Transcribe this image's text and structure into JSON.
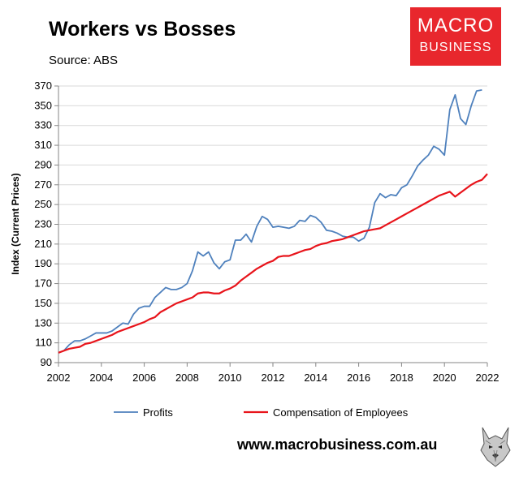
{
  "header": {
    "title": "Workers vs Bosses",
    "source": "Source: ABS"
  },
  "logo": {
    "line1": "MACRO",
    "line2": "BUSINESS",
    "color": "#e8272d"
  },
  "footer": {
    "url": "www.macrobusiness.com.au"
  },
  "chart_data": {
    "type": "line",
    "title": "Workers vs Bosses",
    "xlabel": "",
    "ylabel": "Index (Current Prices)",
    "xlim": [
      2002,
      2022
    ],
    "ylim": [
      90,
      370
    ],
    "xticks": [
      2002,
      2004,
      2006,
      2008,
      2010,
      2012,
      2014,
      2016,
      2018,
      2020,
      2022
    ],
    "yticks": [
      90,
      110,
      130,
      150,
      170,
      190,
      210,
      230,
      250,
      270,
      290,
      310,
      330,
      350,
      370
    ],
    "grid": "horizontal",
    "legend_position": "bottom",
    "series": [
      {
        "name": "Profits",
        "color": "#4f81bd",
        "points": [
          [
            2002.0,
            100
          ],
          [
            2002.25,
            102
          ],
          [
            2002.5,
            108
          ],
          [
            2002.75,
            112
          ],
          [
            2003.0,
            112
          ],
          [
            2003.25,
            114
          ],
          [
            2003.5,
            117
          ],
          [
            2003.75,
            120
          ],
          [
            2004.0,
            120
          ],
          [
            2004.25,
            120
          ],
          [
            2004.5,
            122
          ],
          [
            2004.75,
            126
          ],
          [
            2005.0,
            130
          ],
          [
            2005.25,
            129
          ],
          [
            2005.5,
            139
          ],
          [
            2005.75,
            145
          ],
          [
            2006.0,
            147
          ],
          [
            2006.25,
            147
          ],
          [
            2006.5,
            156
          ],
          [
            2006.75,
            161
          ],
          [
            2007.0,
            166
          ],
          [
            2007.25,
            164
          ],
          [
            2007.5,
            164
          ],
          [
            2007.75,
            166
          ],
          [
            2008.0,
            170
          ],
          [
            2008.25,
            183
          ],
          [
            2008.5,
            202
          ],
          [
            2008.75,
            198
          ],
          [
            2009.0,
            202
          ],
          [
            2009.25,
            191
          ],
          [
            2009.5,
            185
          ],
          [
            2009.75,
            192
          ],
          [
            2010.0,
            194
          ],
          [
            2010.25,
            214
          ],
          [
            2010.5,
            214
          ],
          [
            2010.75,
            220
          ],
          [
            2011.0,
            212
          ],
          [
            2011.25,
            228
          ],
          [
            2011.5,
            238
          ],
          [
            2011.75,
            235
          ],
          [
            2012.0,
            227
          ],
          [
            2012.25,
            228
          ],
          [
            2012.5,
            227
          ],
          [
            2012.75,
            226
          ],
          [
            2013.0,
            228
          ],
          [
            2013.25,
            234
          ],
          [
            2013.5,
            233
          ],
          [
            2013.75,
            239
          ],
          [
            2014.0,
            237
          ],
          [
            2014.25,
            232
          ],
          [
            2014.5,
            224
          ],
          [
            2014.75,
            223
          ],
          [
            2015.0,
            221
          ],
          [
            2015.25,
            218
          ],
          [
            2015.5,
            217
          ],
          [
            2015.75,
            217
          ],
          [
            2016.0,
            213
          ],
          [
            2016.25,
            216
          ],
          [
            2016.5,
            227
          ],
          [
            2016.75,
            252
          ],
          [
            2017.0,
            261
          ],
          [
            2017.25,
            257
          ],
          [
            2017.5,
            260
          ],
          [
            2017.75,
            259
          ],
          [
            2018.0,
            267
          ],
          [
            2018.25,
            270
          ],
          [
            2018.5,
            279
          ],
          [
            2018.75,
            289
          ],
          [
            2019.0,
            295
          ],
          [
            2019.25,
            300
          ],
          [
            2019.5,
            309
          ],
          [
            2019.75,
            306
          ],
          [
            2020.0,
            300
          ],
          [
            2020.25,
            346
          ],
          [
            2020.5,
            361
          ],
          [
            2020.75,
            337
          ],
          [
            2021.0,
            331
          ],
          [
            2021.25,
            350
          ],
          [
            2021.5,
            365
          ],
          [
            2021.75,
            366
          ]
        ]
      },
      {
        "name": "Compensation of Employees",
        "color": "#e8141b",
        "points": [
          [
            2002.0,
            100
          ],
          [
            2002.25,
            102
          ],
          [
            2002.5,
            104
          ],
          [
            2002.75,
            105
          ],
          [
            2003.0,
            106
          ],
          [
            2003.25,
            109
          ],
          [
            2003.5,
            110
          ],
          [
            2003.75,
            112
          ],
          [
            2004.0,
            114
          ],
          [
            2004.25,
            116
          ],
          [
            2004.5,
            118
          ],
          [
            2004.75,
            121
          ],
          [
            2005.0,
            123
          ],
          [
            2005.25,
            125
          ],
          [
            2005.5,
            127
          ],
          [
            2005.75,
            129
          ],
          [
            2006.0,
            131
          ],
          [
            2006.25,
            134
          ],
          [
            2006.5,
            136
          ],
          [
            2006.75,
            141
          ],
          [
            2007.0,
            144
          ],
          [
            2007.25,
            147
          ],
          [
            2007.5,
            150
          ],
          [
            2007.75,
            152
          ],
          [
            2008.0,
            154
          ],
          [
            2008.25,
            156
          ],
          [
            2008.5,
            160
          ],
          [
            2008.75,
            161
          ],
          [
            2009.0,
            161
          ],
          [
            2009.25,
            160
          ],
          [
            2009.5,
            160
          ],
          [
            2009.75,
            163
          ],
          [
            2010.0,
            165
          ],
          [
            2010.25,
            168
          ],
          [
            2010.5,
            173
          ],
          [
            2010.75,
            177
          ],
          [
            2011.0,
            181
          ],
          [
            2011.25,
            185
          ],
          [
            2011.5,
            188
          ],
          [
            2011.75,
            191
          ],
          [
            2012.0,
            193
          ],
          [
            2012.25,
            197
          ],
          [
            2012.5,
            198
          ],
          [
            2012.75,
            198
          ],
          [
            2013.0,
            200
          ],
          [
            2013.25,
            202
          ],
          [
            2013.5,
            204
          ],
          [
            2013.75,
            205
          ],
          [
            2014.0,
            208
          ],
          [
            2014.25,
            210
          ],
          [
            2014.5,
            211
          ],
          [
            2014.75,
            213
          ],
          [
            2015.0,
            214
          ],
          [
            2015.25,
            215
          ],
          [
            2015.5,
            217
          ],
          [
            2015.75,
            219
          ],
          [
            2016.0,
            221
          ],
          [
            2016.25,
            223
          ],
          [
            2016.5,
            224
          ],
          [
            2016.75,
            225
          ],
          [
            2017.0,
            226
          ],
          [
            2017.25,
            229
          ],
          [
            2017.5,
            232
          ],
          [
            2017.75,
            235
          ],
          [
            2018.0,
            238
          ],
          [
            2018.25,
            241
          ],
          [
            2018.5,
            244
          ],
          [
            2018.75,
            247
          ],
          [
            2019.0,
            250
          ],
          [
            2019.25,
            253
          ],
          [
            2019.5,
            256
          ],
          [
            2019.75,
            259
          ],
          [
            2020.0,
            261
          ],
          [
            2020.25,
            263
          ],
          [
            2020.5,
            258
          ],
          [
            2020.75,
            262
          ],
          [
            2021.0,
            266
          ],
          [
            2021.25,
            270
          ],
          [
            2021.5,
            273
          ],
          [
            2021.75,
            275
          ],
          [
            2022.0,
            281
          ]
        ]
      }
    ]
  }
}
